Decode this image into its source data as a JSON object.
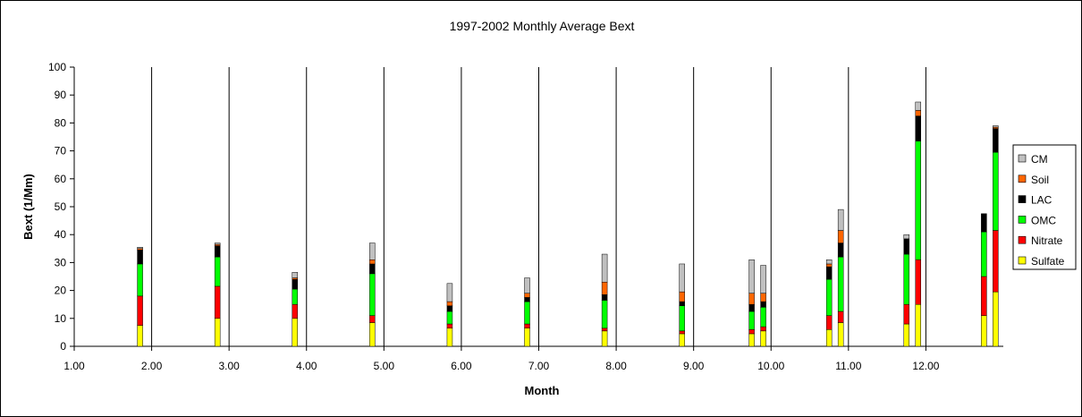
{
  "chart_data": {
    "type": "bar",
    "stacked": true,
    "title": "1997-2002 Monthly Average Bext",
    "xlabel": "Month",
    "ylabel": "Bext (1/Mm)",
    "xlim": [
      1,
      13
    ],
    "ylim": [
      0,
      100
    ],
    "yticks": [
      0,
      10,
      20,
      30,
      40,
      50,
      60,
      70,
      80,
      90,
      100
    ],
    "xticks": [
      "1.00",
      "2.00",
      "3.00",
      "4.00",
      "5.00",
      "6.00",
      "7.00",
      "8.00",
      "9.00",
      "10.00",
      "11.00",
      "12.00"
    ],
    "xtick_values": [
      1,
      2,
      3,
      4,
      5,
      6,
      7,
      8,
      9,
      10,
      11,
      12
    ],
    "grid": "vertical lines at each month",
    "legend_position": "right",
    "series_order_bottom_to_top": [
      "Sulfate",
      "Nitrate",
      "OMC",
      "LAC",
      "Soil",
      "CM"
    ],
    "colors": {
      "Sulfate": "#ffff00",
      "Nitrate": "#ff0000",
      "OMC": "#00ff00",
      "LAC": "#000000",
      "Soil": "#ff6600",
      "CM": "#c0c0c0"
    },
    "legend": [
      "CM",
      "Soil",
      "LAC",
      "OMC",
      "Nitrate",
      "Sulfate"
    ],
    "bars": [
      {
        "x": 1.85,
        "Sulfate": 7.5,
        "Nitrate": 10.5,
        "OMC": 11.5,
        "LAC": 5.0,
        "Soil": 0.5,
        "CM": 0.5
      },
      {
        "x": 2.85,
        "Sulfate": 10.0,
        "Nitrate": 11.5,
        "OMC": 10.5,
        "LAC": 4.0,
        "Soil": 0.5,
        "CM": 0.5
      },
      {
        "x": 3.85,
        "Sulfate": 10.0,
        "Nitrate": 5.0,
        "OMC": 5.5,
        "LAC": 3.5,
        "Soil": 0.5,
        "CM": 2.0
      },
      {
        "x": 4.85,
        "Sulfate": 8.5,
        "Nitrate": 2.5,
        "OMC": 15.0,
        "LAC": 3.5,
        "Soil": 1.5,
        "CM": 6.0
      },
      {
        "x": 5.85,
        "Sulfate": 6.5,
        "Nitrate": 1.5,
        "OMC": 4.5,
        "LAC": 2.0,
        "Soil": 1.5,
        "CM": 6.5
      },
      {
        "x": 6.85,
        "Sulfate": 6.5,
        "Nitrate": 1.5,
        "OMC": 8.0,
        "LAC": 1.5,
        "Soil": 1.5,
        "CM": 5.5
      },
      {
        "x": 7.85,
        "Sulfate": 5.5,
        "Nitrate": 1.0,
        "OMC": 10.0,
        "LAC": 2.0,
        "Soil": 4.5,
        "CM": 10.0
      },
      {
        "x": 8.85,
        "Sulfate": 4.5,
        "Nitrate": 1.0,
        "OMC": 9.0,
        "LAC": 1.5,
        "Soil": 3.5,
        "CM": 10.0
      },
      {
        "x": 9.75,
        "Sulfate": 4.5,
        "Nitrate": 1.5,
        "OMC": 6.5,
        "LAC": 2.5,
        "Soil": 4.0,
        "CM": 12.0
      },
      {
        "x": 9.9,
        "Sulfate": 5.5,
        "Nitrate": 1.5,
        "OMC": 7.0,
        "LAC": 2.0,
        "Soil": 3.0,
        "CM": 10.0
      },
      {
        "x": 10.75,
        "Sulfate": 6.0,
        "Nitrate": 5.0,
        "OMC": 13.0,
        "LAC": 4.5,
        "Soil": 1.0,
        "CM": 1.5
      },
      {
        "x": 10.9,
        "Sulfate": 8.5,
        "Nitrate": 4.0,
        "OMC": 19.5,
        "LAC": 5.0,
        "Soil": 4.5,
        "CM": 7.5
      },
      {
        "x": 11.75,
        "Sulfate": 8.0,
        "Nitrate": 7.0,
        "OMC": 18.0,
        "LAC": 5.5,
        "Soil": 0.0,
        "CM": 1.5
      },
      {
        "x": 11.9,
        "Sulfate": 15.0,
        "Nitrate": 16.0,
        "OMC": 42.5,
        "LAC": 9.0,
        "Soil": 2.0,
        "CM": 3.0
      },
      {
        "x": 12.75,
        "Sulfate": 11.0,
        "Nitrate": 14.0,
        "OMC": 16.0,
        "LAC": 6.5,
        "Soil": 0.0,
        "CM": 0.0
      },
      {
        "x": 12.9,
        "Sulfate": 19.5,
        "Nitrate": 22.0,
        "OMC": 28.0,
        "LAC": 8.5,
        "Soil": 0.5,
        "CM": 0.5
      }
    ]
  }
}
